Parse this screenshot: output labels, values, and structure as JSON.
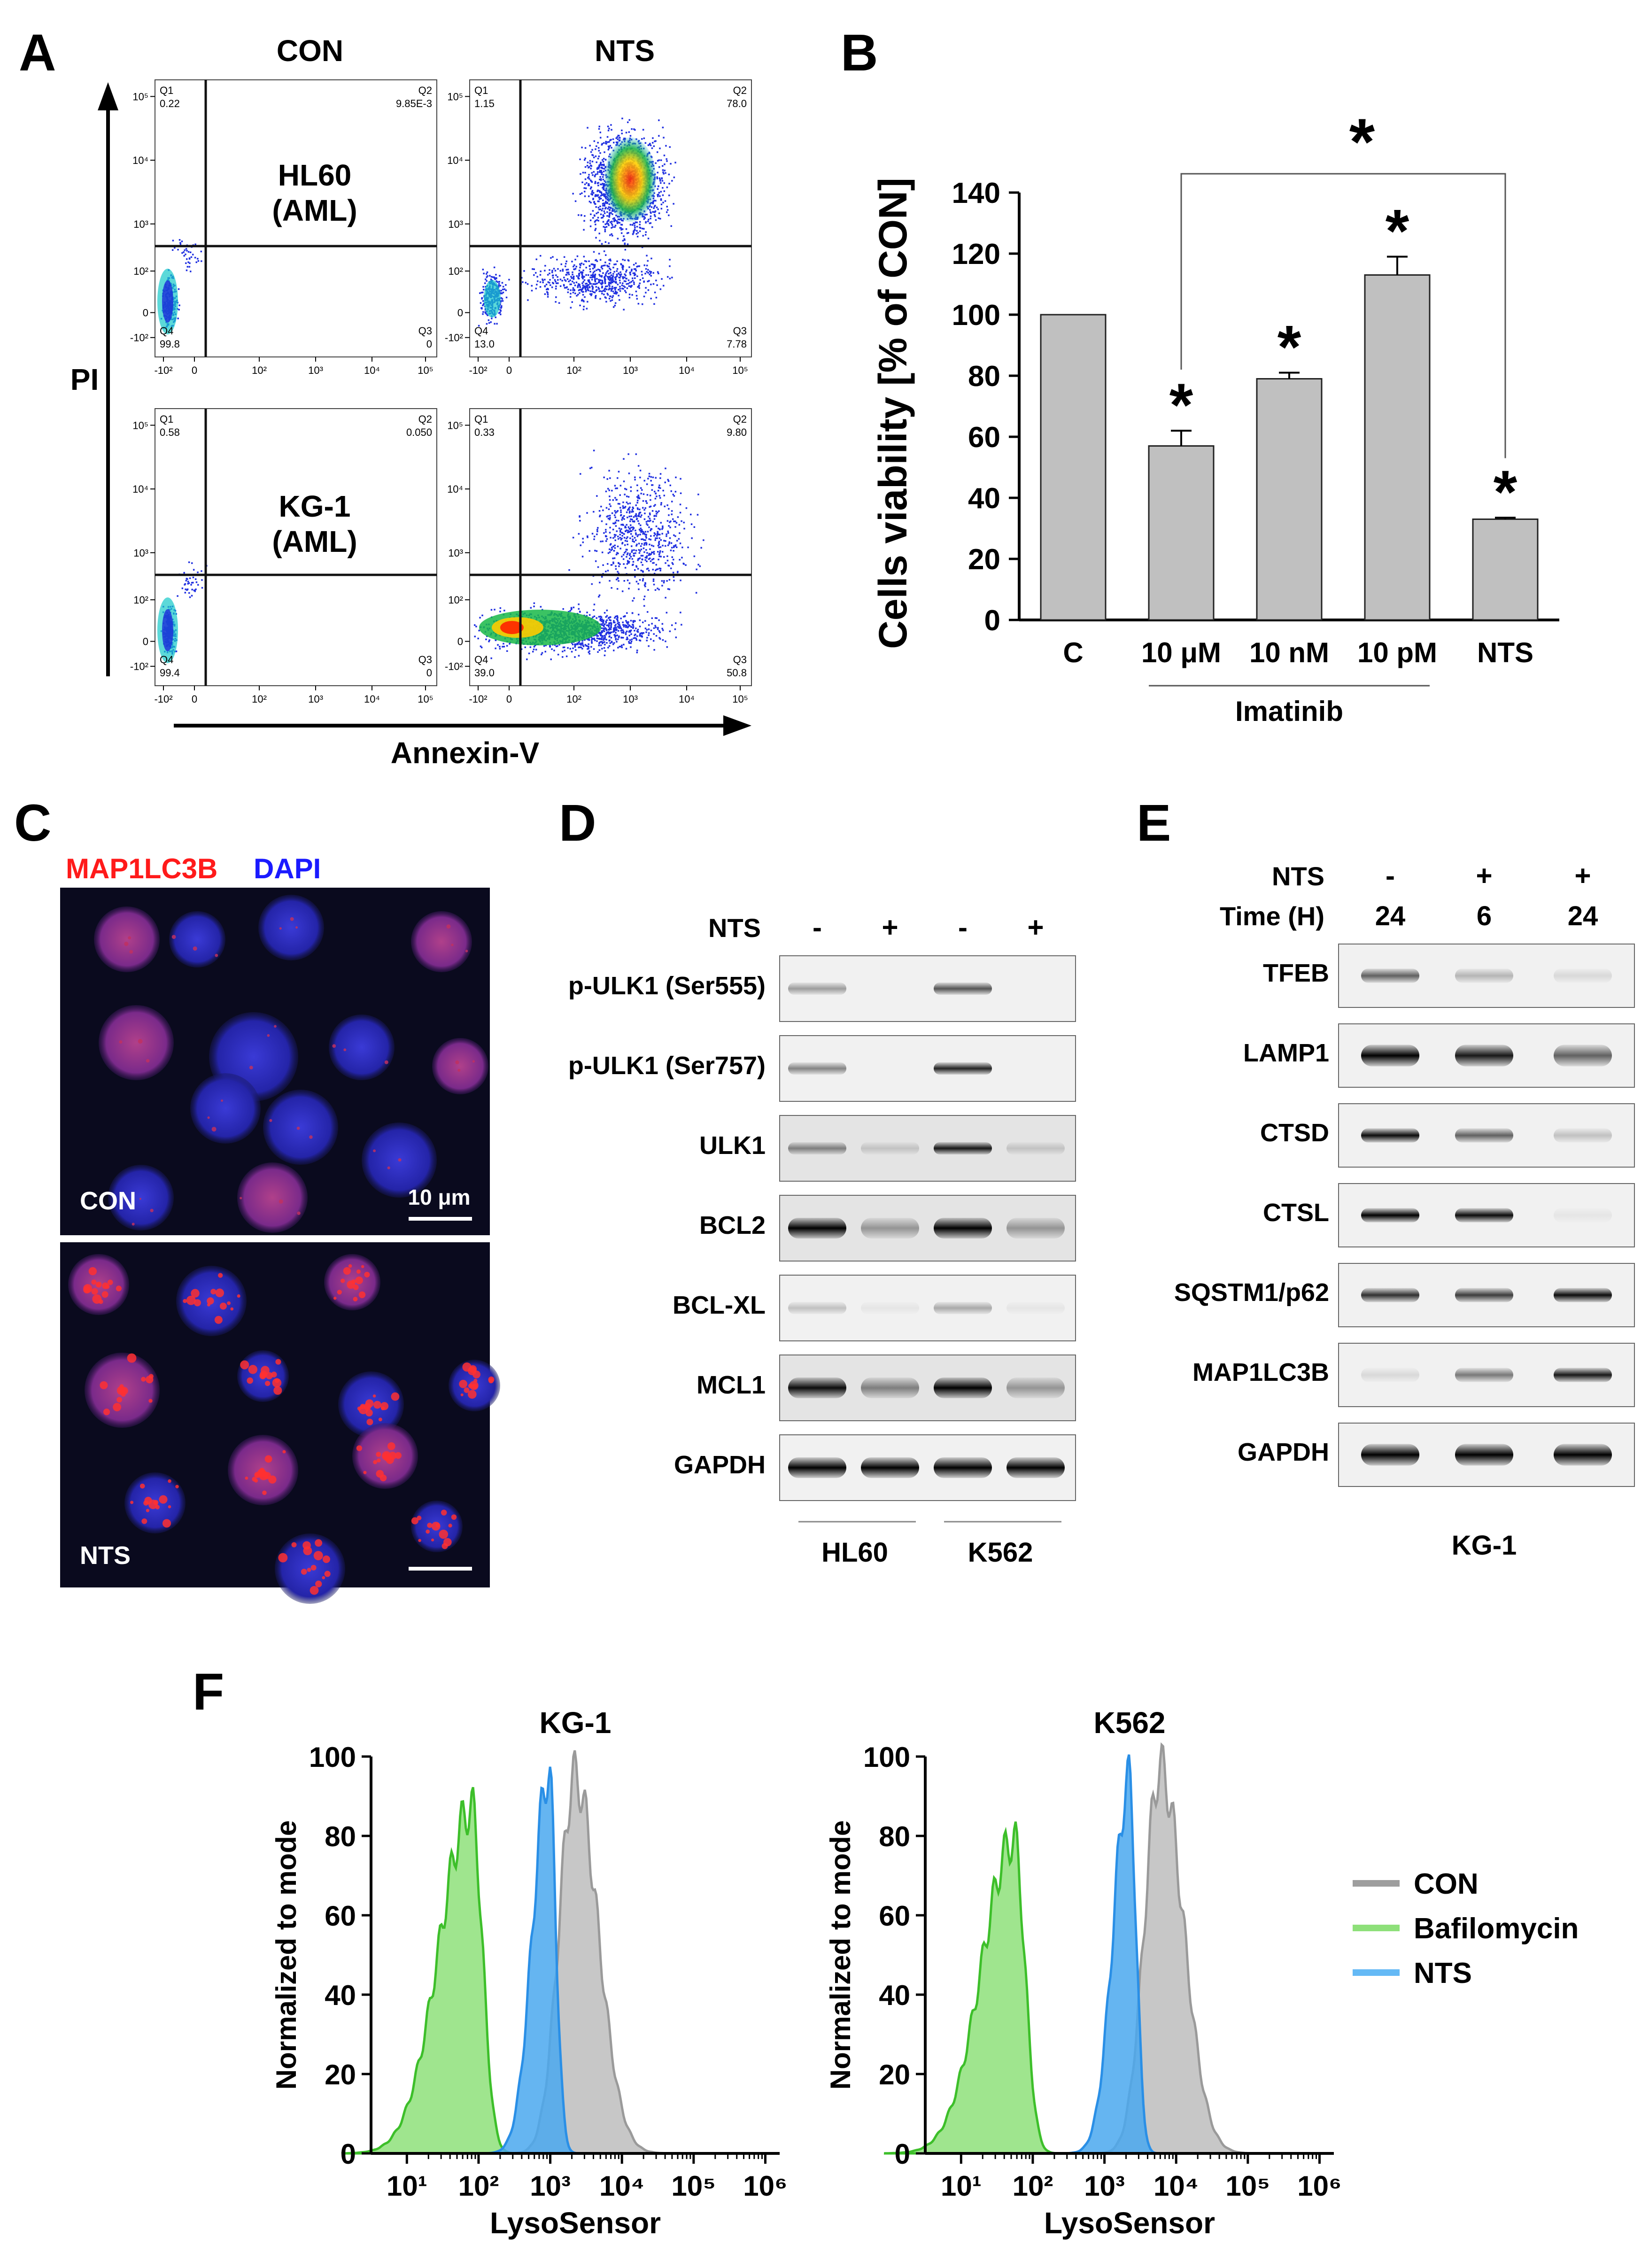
{
  "panels": {
    "A": "A",
    "B": "B",
    "C": "C",
    "D": "D",
    "E": "E",
    "F": "F"
  },
  "panel_a": {
    "col_labels": [
      "CON",
      "NTS"
    ],
    "row_labels": [
      [
        "HL60",
        "(AML)"
      ],
      [
        "KG-1",
        "(AML)"
      ]
    ],
    "y_axis": "PI",
    "x_axis": "Annexin-V",
    "y_ticks": [
      "10⁵",
      "10⁴",
      "10³",
      "10²",
      "0",
      "-10²"
    ],
    "x_ticks": [
      "-10²",
      "0",
      "10²",
      "10³",
      "10⁴",
      "10⁵"
    ],
    "plots": [
      {
        "q1_label": "Q1",
        "q1": "0.22",
        "q2_label": "Q2",
        "q2": "9.85E-3",
        "q3_label": "Q3",
        "q3": "0",
        "q4_label": "Q4",
        "q4": "99.8"
      },
      {
        "q1_label": "Q1",
        "q1": "1.15",
        "q2_label": "Q2",
        "q2": "78.0",
        "q3_label": "Q3",
        "q3": "7.78",
        "q4_label": "Q4",
        "q4": "13.0"
      },
      {
        "q1_label": "Q1",
        "q1": "0.58",
        "q2_label": "Q2",
        "q2": "0.050",
        "q3_label": "Q3",
        "q3": "0",
        "q4_label": "Q4",
        "q4": "99.4"
      },
      {
        "q1_label": "Q1",
        "q1": "0.33",
        "q2_label": "Q2",
        "q2": "9.80",
        "q3_label": "Q3",
        "q3": "50.8",
        "q4_label": "Q4",
        "q4": "39.0"
      }
    ]
  },
  "chart_data": [
    {
      "type": "bar",
      "ylabel": "Cells viability [% of CON]",
      "categories": [
        "C",
        "10 μM",
        "10 nM",
        "10 pM",
        "NTS"
      ],
      "values": [
        100,
        57,
        79,
        113,
        33
      ],
      "errors": [
        0,
        5,
        2,
        6,
        0.5
      ],
      "significance": [
        "",
        "*",
        "*",
        "*",
        "*"
      ],
      "bracket_mark": "*",
      "group_label": "Imatinib",
      "ylim": [
        0,
        140
      ],
      "yticks": [
        0,
        20,
        40,
        60,
        80,
        100,
        120,
        140
      ],
      "bar_color": "#c0c0c0"
    },
    {
      "type": "area",
      "title": "KG-1",
      "xlabel": "LysoSensor",
      "ylabel": "Normalized to mode",
      "x_scale": "log",
      "xticks": [
        "10¹",
        "10²",
        "10³",
        "10⁴",
        "10⁵",
        "10⁶"
      ],
      "yticks": [
        0,
        20,
        40,
        60,
        80,
        100
      ],
      "ylim": [
        0,
        100
      ],
      "series": [
        {
          "name": "CON",
          "peak_x": 2200,
          "peak_y": 95,
          "color": "#bdbdbd"
        },
        {
          "name": "Bafilomycin",
          "peak_x": 80,
          "peak_y": 87,
          "color": "#8ee07a"
        },
        {
          "name": "NTS",
          "peak_x": 950,
          "peak_y": 96,
          "color": "#4aa8ef"
        }
      ]
    },
    {
      "type": "area",
      "title": "K562",
      "xlabel": "LysoSensor",
      "ylabel": "Normalized to mode",
      "x_scale": "log",
      "xticks": [
        "10¹",
        "10²",
        "10³",
        "10⁴",
        "10⁵",
        "10⁶"
      ],
      "yticks": [
        0,
        20,
        40,
        60,
        80,
        100
      ],
      "ylim": [
        0,
        100
      ],
      "series": [
        {
          "name": "CON",
          "peak_x": 6000,
          "peak_y": 97,
          "color": "#bdbdbd"
        },
        {
          "name": "Bafilomycin",
          "peak_x": 55,
          "peak_y": 79,
          "color": "#8ee07a"
        },
        {
          "name": "NTS",
          "peak_x": 2200,
          "peak_y": 94,
          "color": "#4aa8ef"
        }
      ]
    }
  ],
  "panel_c": {
    "stain1": "MAP1LC3B",
    "stain2": "DAPI",
    "top_label": "CON",
    "bottom_label": "NTS",
    "scale": "10 μm"
  },
  "panel_d": {
    "treatment_label": "NTS",
    "lanes": [
      "-",
      "+",
      "-",
      "+"
    ],
    "bands": [
      "p-ULK1 (Ser555)",
      "p-ULK1 (Ser757)",
      "ULK1",
      "BCL2",
      "BCL-XL",
      "MCL1",
      "GAPDH"
    ],
    "cell_lines": [
      "HL60",
      "K562"
    ]
  },
  "panel_e": {
    "treatment_label": "NTS",
    "time_label": "Time (H)",
    "treatment": [
      "-",
      "+",
      "+"
    ],
    "times": [
      "24",
      "6",
      "24"
    ],
    "bands": [
      "TFEB",
      "LAMP1",
      "CTSD",
      "CTSL",
      "SQSTM1/p62",
      "MAP1LC3B",
      "GAPDH"
    ],
    "cell_line": "KG-1"
  },
  "panel_f": {
    "legend": [
      {
        "name": "CON",
        "color": "#9e9e9e"
      },
      {
        "name": "Bafilomycin",
        "color": "#8ee07a"
      },
      {
        "name": "NTS",
        "color": "#64b9f5"
      }
    ]
  }
}
